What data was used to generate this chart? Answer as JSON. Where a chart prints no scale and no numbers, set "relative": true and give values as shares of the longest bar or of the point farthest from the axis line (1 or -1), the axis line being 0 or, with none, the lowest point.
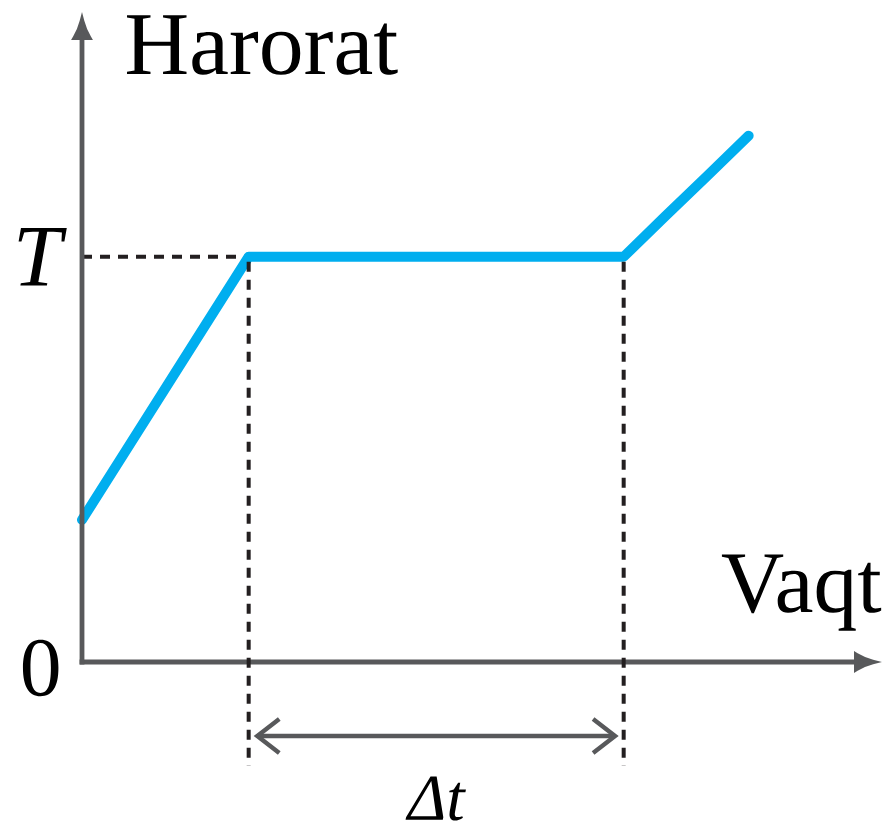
{
  "chart_data": {
    "type": "line",
    "xlabel": "Vaqt",
    "ylabel": "Harorat",
    "relative": true,
    "categories": [
      null,
      null,
      null,
      null,
      null,
      null,
      null,
      null,
      null,
      null,
      null,
      null,
      null,
      null,
      null,
      null,
      null
    ],
    "values": [
      0.27,
      0.395,
      0.52,
      0.645,
      0.77,
      0.77,
      0.77,
      0.77,
      0.77,
      0.77,
      0.77,
      0.77,
      0.77,
      0.77,
      0.847,
      0.923,
      1
    ],
    "color": "#00aeef",
    "ref_lines": [
      {
        "axis": "y",
        "value": 0.77,
        "label": "T",
        "line_style": "dashed",
        "color": "#231f20"
      }
    ],
    "annotations": [
      "0",
      "Δt"
    ]
  }
}
